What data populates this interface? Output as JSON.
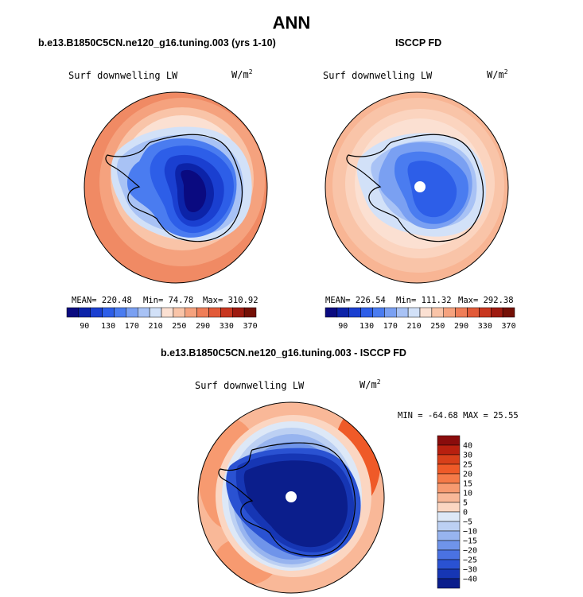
{
  "page_title": "ANN",
  "panels": [
    {
      "title": "b.e13.B1850C5CN.ne120_g16.tuning.003 (yrs 1-10)",
      "variable": "Surf downwelling LW",
      "units": "W/m",
      "units_exp": "2",
      "mean_label": "MEAN= 220.48",
      "min_label": "Min=  74.78",
      "max_label": "Max= 310.92"
    },
    {
      "title": "ISCCP FD",
      "variable": "Surf downwelling LW",
      "units": "W/m",
      "units_exp": "2",
      "mean_label": "MEAN= 226.54",
      "min_label": "Min= 111.32",
      "max_label": "Max= 292.38"
    },
    {
      "title": "b.e13.B1850C5CN.ne120_g16.tuning.003 - ISCCP FD",
      "variable": "Surf downwelling LW",
      "units": "W/m",
      "units_exp": "2",
      "minmax_label": "MIN = -64.68 MAX =  25.55"
    }
  ],
  "colorbar_top": {
    "labels": [
      "90",
      "130",
      "170",
      "210",
      "250",
      "290",
      "330",
      "370"
    ],
    "colors": [
      "#0a0a80",
      "#0c23a8",
      "#1a3fd0",
      "#2d5ee8",
      "#4a7cf0",
      "#7aa0f2",
      "#a8c2f5",
      "#d2e1f8",
      "#fbe0d2",
      "#f9c4a8",
      "#f5a27e",
      "#ef7e58",
      "#e25a38",
      "#c8361f",
      "#9e1a10",
      "#741006"
    ]
  },
  "colorbar_diff": {
    "labels": [
      "40",
      "30",
      "25",
      "20",
      "15",
      "10",
      "5",
      "0",
      "−5",
      "−10",
      "−15",
      "−20",
      "−25",
      "−30",
      "−40"
    ],
    "colors": [
      "#8a0c0c",
      "#b8200f",
      "#d8401a",
      "#ef5a28",
      "#f57a48",
      "#f79a70",
      "#f9b898",
      "#fbd6c2",
      "#dde8f7",
      "#bcd0f3",
      "#97b4ef",
      "#6f94ea",
      "#4a72e2",
      "#2a52d2",
      "#1636b4",
      "#0b1e8c"
    ]
  }
}
